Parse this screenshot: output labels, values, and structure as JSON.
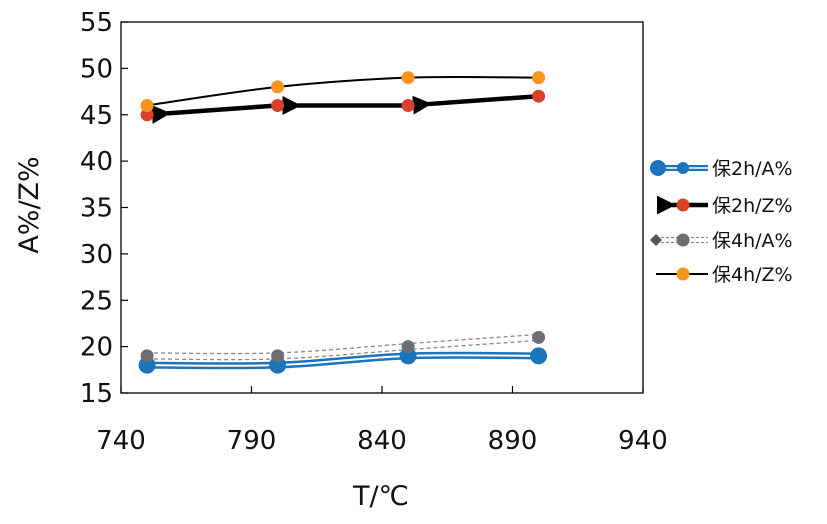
{
  "chart_data": {
    "type": "line",
    "title": "",
    "xlabel": "T/℃",
    "ylabel": "A%/Z%",
    "xlim": [
      740,
      940
    ],
    "ylim": [
      15,
      55
    ],
    "xticks": [
      740,
      790,
      840,
      890,
      940
    ],
    "yticks": [
      15,
      20,
      25,
      30,
      35,
      40,
      45,
      50,
      55
    ],
    "x_tick_labels": [
      "740",
      "790",
      "840",
      "890",
      "940"
    ],
    "y_tick_labels": [
      "15",
      "20",
      "25",
      "30",
      "35",
      "40",
      "45",
      "50",
      "55"
    ],
    "grid": false,
    "legend_position": "right",
    "x": [
      750,
      800,
      850,
      900
    ],
    "series": [
      {
        "name": "保2h/A%",
        "values": [
          18,
          18,
          19,
          19
        ],
        "color": "#1b75bc",
        "marker": "circle",
        "style": "double-blue"
      },
      {
        "name": "保2h/Z%",
        "values": [
          45,
          46,
          46,
          47
        ],
        "color": "#d9412b",
        "marker": "circle",
        "style": "thick-arrow"
      },
      {
        "name": "保4h/A%",
        "values": [
          19,
          19,
          20,
          21
        ],
        "color": "#6d6e71",
        "marker": "circle",
        "style": "dashed-gray"
      },
      {
        "name": "保4h/Z%",
        "values": [
          46,
          48,
          49,
          49
        ],
        "color": "#f7941d",
        "marker": "circle",
        "style": "thin-black"
      }
    ]
  }
}
